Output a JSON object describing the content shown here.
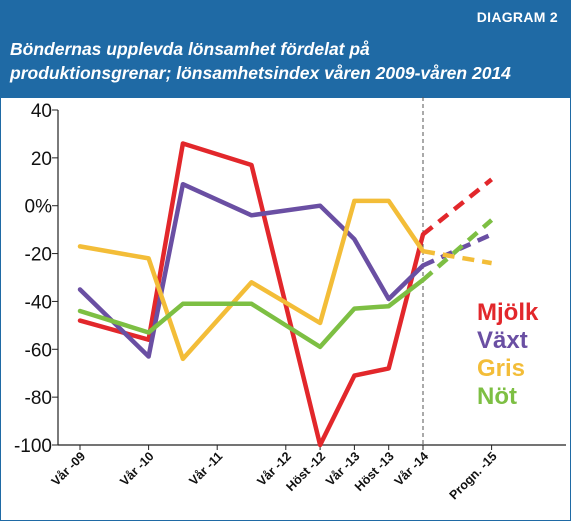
{
  "header": {
    "tag": "DIAGRAM 2",
    "title_line1": "Böndernas upplevda lönsamhet fördelat på",
    "title_line2": "produktionsgrenar; lönsamhetsindex våren 2009-våren 2014"
  },
  "chart_data": {
    "type": "line",
    "categories": [
      "Vår -09",
      "Vår -10",
      "Vår -11",
      "Vår -12",
      "Höst -12",
      "Vår -13",
      "Höst -13",
      "Vår -14",
      "Progn. -15"
    ],
    "x_positions": [
      0,
      2,
      4,
      6,
      7,
      8,
      9,
      10,
      12
    ],
    "ylim": [
      -100,
      40
    ],
    "yticks": [
      40,
      20,
      0,
      -20,
      -40,
      -60,
      -80,
      -100
    ],
    "ytick_labels": [
      "40",
      "20",
      "0%",
      "-20",
      "-40",
      "-60",
      "-80",
      "-100"
    ],
    "forecast_divider_after": "Vår -14",
    "grid": false,
    "legend_position": "right",
    "series": [
      {
        "name": "Mjölk",
        "color": "#e2272b",
        "points": [
          [
            0,
            -48
          ],
          [
            2,
            -56
          ],
          [
            3,
            26
          ],
          [
            5,
            17
          ],
          [
            7,
            -100
          ],
          [
            8,
            -71
          ],
          [
            9,
            -68
          ],
          [
            10,
            -12
          ]
        ],
        "forecast": [
          [
            10,
            -12
          ],
          [
            12,
            11
          ]
        ]
      },
      {
        "name": "Växt",
        "color": "#6a4fa3",
        "points": [
          [
            0,
            -35
          ],
          [
            2,
            -63
          ],
          [
            3,
            9
          ],
          [
            5,
            -4
          ],
          [
            7,
            0
          ],
          [
            8,
            -14
          ],
          [
            9,
            -39
          ],
          [
            10,
            -25
          ]
        ],
        "forecast": [
          [
            10,
            -25
          ],
          [
            12,
            -12
          ]
        ]
      },
      {
        "name": "Gris",
        "color": "#f3bd38",
        "points": [
          [
            0,
            -17
          ],
          [
            2,
            -22
          ],
          [
            3,
            -64
          ],
          [
            5,
            -32
          ],
          [
            7,
            -49
          ],
          [
            8,
            2
          ],
          [
            9,
            2
          ],
          [
            10,
            -19
          ]
        ],
        "forecast": [
          [
            10,
            -19
          ],
          [
            12,
            -24
          ]
        ]
      },
      {
        "name": "Nöt",
        "color": "#7dbf43",
        "points": [
          [
            0,
            -44
          ],
          [
            2,
            -53
          ],
          [
            3,
            -41
          ],
          [
            5,
            -41
          ],
          [
            7,
            -59
          ],
          [
            8,
            -43
          ],
          [
            9,
            -42
          ],
          [
            10,
            -31
          ]
        ],
        "forecast": [
          [
            10,
            -31
          ],
          [
            12,
            -6
          ]
        ]
      }
    ]
  }
}
